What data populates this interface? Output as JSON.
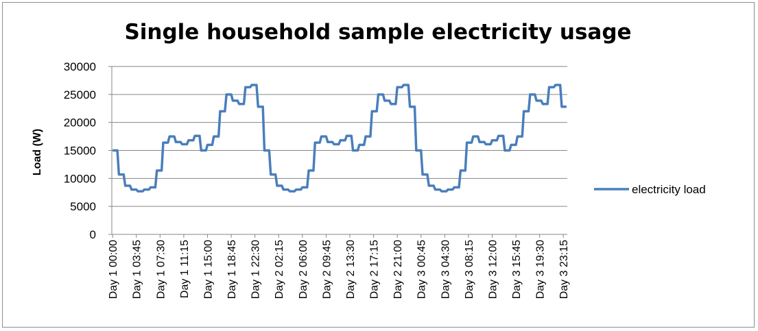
{
  "chart_data": {
    "type": "line",
    "title": "Single household sample electricity usage",
    "ylabel": "Load (W)",
    "xlabel": "",
    "ylim": [
      0,
      30000
    ],
    "yticks": [
      0,
      5000,
      10000,
      15000,
      20000,
      25000,
      30000
    ],
    "grid": "horizontal",
    "legend_position": "right",
    "x_tick_labels": [
      "Day 1 00:00",
      "Day 1 03:45",
      "Day 1 07:30",
      "Day 1 11:15",
      "Day 1 15:00",
      "Day 1 18:45",
      "Day 1 22:30",
      "Day 2  02:15",
      "Day 2 06:00",
      "Day 2 09:45",
      "Day 2 13:30",
      "Day 2 17:15",
      "Day 2 21:00",
      "Day 3 00:45",
      "Day 3 04:30",
      "Day 3 08:15",
      "Day 3 12:00",
      "Day 3 15:45",
      "Day 3 19:30",
      "Day 3 23:15"
    ],
    "x_tick_step_intervals": 15,
    "interval_minutes": 15,
    "series": [
      {
        "name": "electricity load",
        "color": "#4a7ebb",
        "hourly_profile": [
          15000,
          10700,
          8700,
          8000,
          7700,
          8000,
          8400,
          11400,
          16400,
          17500,
          16500,
          16100,
          16800,
          17600,
          15000,
          16000,
          17500,
          22000,
          25000,
          23900,
          23300,
          26300,
          26700,
          22800
        ]
      }
    ]
  }
}
